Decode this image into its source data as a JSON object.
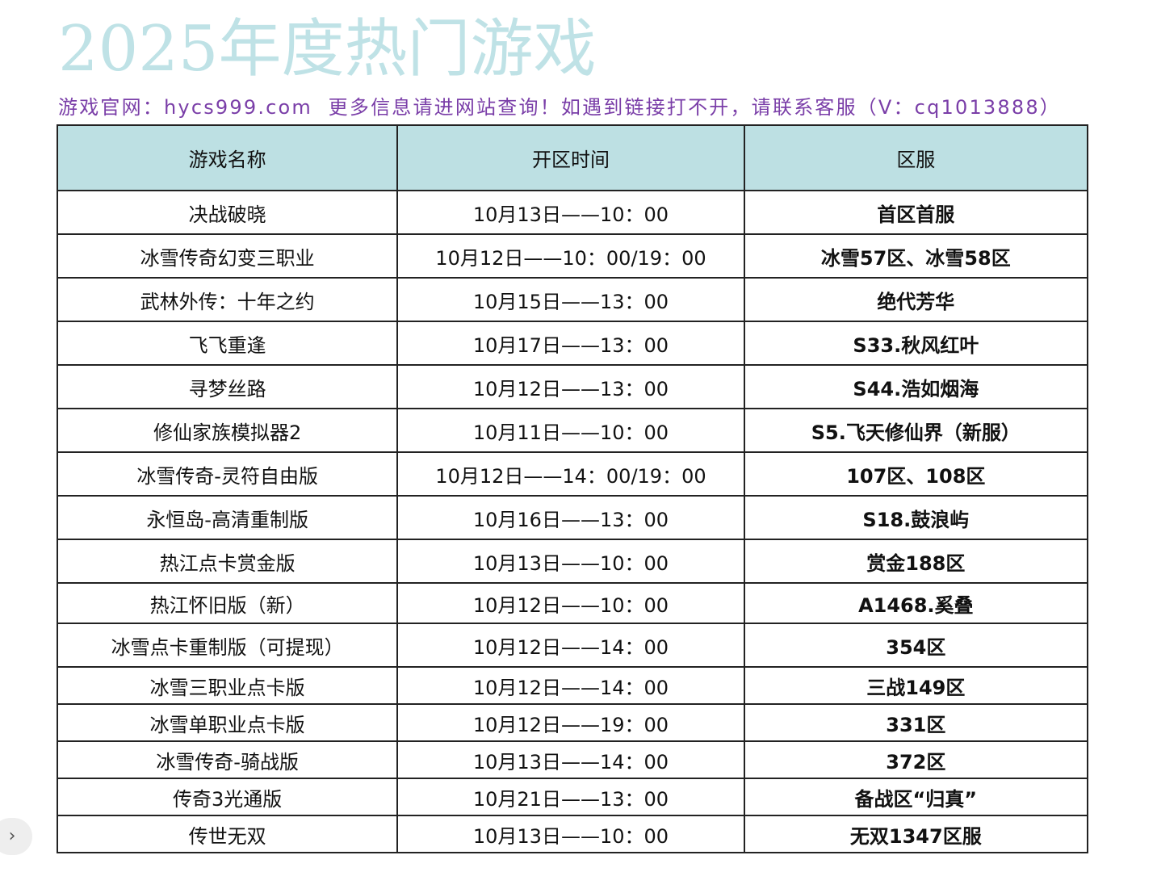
{
  "header": {
    "title": "2025年度热门游戏",
    "subtitle": "游戏官网：hycs999.com  更多信息请进网站查询！如遇到链接打不开，请联系客服（V：cq1013888）"
  },
  "table": {
    "columns": [
      "游戏名称",
      "开区时间",
      "区服"
    ],
    "rows": [
      [
        "决战破晓",
        "10月13日——10：00",
        "首区首服"
      ],
      [
        "冰雪传奇幻变三职业",
        "10月12日——10：00/19：00",
        "冰雪57区、冰雪58区"
      ],
      [
        "武林外传：十年之约",
        "10月15日——13：00",
        "绝代芳华"
      ],
      [
        "飞飞重逢",
        "10月17日——13：00",
        "S33.秋风红叶"
      ],
      [
        "寻梦丝路",
        "10月12日——13：00",
        "S44.浩如烟海"
      ],
      [
        "修仙家族模拟器2",
        "10月11日——10：00",
        "S5.飞天修仙界（新服）"
      ],
      [
        "冰雪传奇-灵符自由版",
        "10月12日——14：00/19：00",
        "107区、108区"
      ],
      [
        "永恒岛-高清重制版",
        "10月16日——13：00",
        "S18.鼓浪屿"
      ],
      [
        "热江点卡赏金版",
        "10月13日——10：00",
        "赏金188区"
      ],
      [
        "热江怀旧版（新）",
        "10月12日——10：00",
        "A1468.奚叠"
      ],
      [
        "冰雪点卡重制版（可提现）",
        "10月12日——14：00",
        "354区"
      ],
      [
        "冰雪三职业点卡版",
        "10月12日——14：00",
        "三战149区"
      ],
      [
        "冰雪单职业点卡版",
        "10月12日——19：00",
        "331区"
      ],
      [
        "冰雪传奇-骑战版",
        "10月13日——14：00",
        "372区"
      ],
      [
        "传奇3光通版",
        "10月21日——13：00",
        "备战区“归真”"
      ],
      [
        "传世无双",
        "10月13日——10：00",
        "无双1347区服"
      ]
    ]
  }
}
